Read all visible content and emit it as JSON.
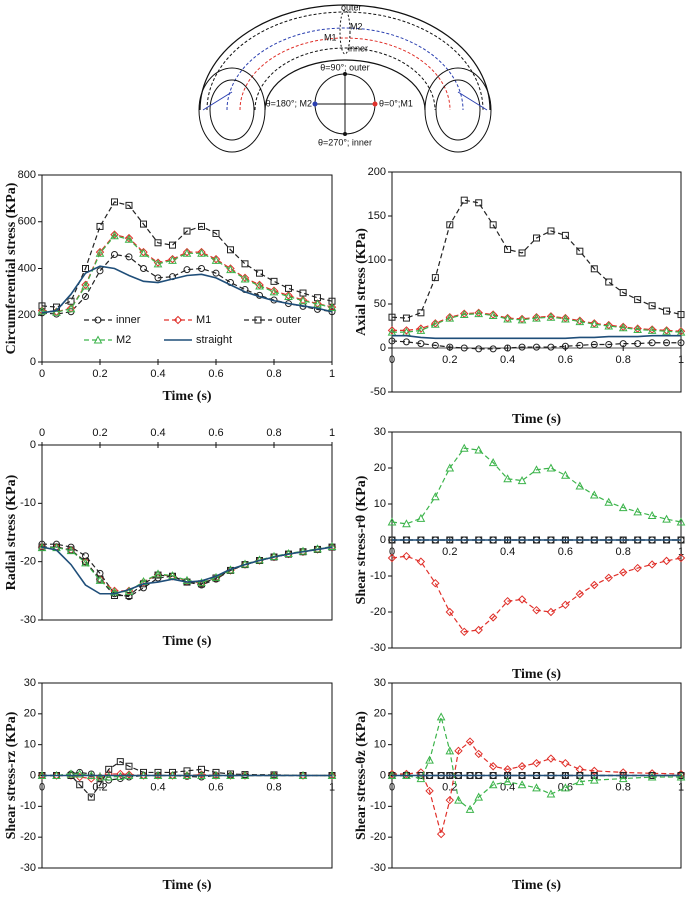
{
  "diagram": {
    "tube_labels": [
      "outer",
      "M2",
      "M1",
      "inner"
    ],
    "section_labels": [
      "θ=90°; outer",
      "θ=180°; M2",
      "θ=0°;M1",
      "θ=270°; inner"
    ]
  },
  "chart_data": [
    {
      "type": "line",
      "y_label": "Circumferential stress (KPa)",
      "x_label": "Time (s)",
      "x": [
        0,
        0.05,
        0.1,
        0.15,
        0.2,
        0.25,
        0.3,
        0.35,
        0.4,
        0.45,
        0.5,
        0.55,
        0.6,
        0.65,
        0.7,
        0.75,
        0.8,
        0.85,
        0.9,
        0.95,
        1
      ],
      "xlim": [
        0,
        1
      ],
      "xticks": [
        0,
        0.2,
        0.4,
        0.6,
        0.8,
        1
      ],
      "ylim": [
        0,
        800
      ],
      "yticks": [
        0,
        200,
        400,
        600,
        800
      ],
      "series": [
        {
          "name": "inner",
          "color": "#222222",
          "marker": "circle",
          "dash": true,
          "values": [
            210,
            205,
            215,
            280,
            390,
            460,
            450,
            400,
            360,
            365,
            395,
            400,
            380,
            340,
            310,
            285,
            265,
            250,
            238,
            225,
            215
          ]
        },
        {
          "name": "M1",
          "color": "#e0302a",
          "marker": "diamond",
          "dash": true,
          "values": [
            220,
            215,
            230,
            330,
            470,
            545,
            530,
            470,
            425,
            440,
            470,
            470,
            440,
            400,
            360,
            330,
            305,
            285,
            265,
            250,
            235
          ]
        },
        {
          "name": "outer",
          "color": "#222222",
          "marker": "square",
          "dash": true,
          "values": [
            240,
            235,
            260,
            400,
            580,
            685,
            670,
            590,
            510,
            500,
            560,
            580,
            550,
            480,
            420,
            380,
            345,
            315,
            295,
            275,
            260
          ]
        },
        {
          "name": "M2",
          "color": "#3cb44b",
          "marker": "triangle",
          "dash": true,
          "values": [
            218,
            213,
            228,
            325,
            465,
            540,
            525,
            465,
            420,
            435,
            465,
            465,
            435,
            395,
            355,
            325,
            300,
            280,
            262,
            248,
            233
          ]
        },
        {
          "name": "straight",
          "color": "#1f4e79",
          "dash": false,
          "values": [
            210,
            220,
            290,
            380,
            410,
            400,
            370,
            345,
            340,
            355,
            370,
            375,
            360,
            330,
            300,
            280,
            262,
            250,
            240,
            230,
            215
          ]
        }
      ]
    },
    {
      "type": "line",
      "y_label": "Axial stress (KPa)",
      "x_label": "Time (s)",
      "x": [
        0,
        0.05,
        0.1,
        0.15,
        0.2,
        0.25,
        0.3,
        0.35,
        0.4,
        0.45,
        0.5,
        0.55,
        0.6,
        0.65,
        0.7,
        0.75,
        0.8,
        0.85,
        0.9,
        0.95,
        1
      ],
      "xlim": [
        0,
        1
      ],
      "xticks": [
        0,
        0.2,
        0.4,
        0.6,
        0.8,
        1
      ],
      "ylim": [
        -50,
        200
      ],
      "yticks": [
        -50,
        0,
        50,
        100,
        150,
        200
      ],
      "series": [
        {
          "color": "#222222",
          "marker": "circle",
          "dash": true,
          "values": [
            8,
            7,
            5,
            3,
            1,
            0,
            -1,
            -1,
            0,
            1,
            1,
            1,
            2,
            3,
            4,
            4,
            5,
            5,
            6,
            6,
            6
          ]
        },
        {
          "color": "#e0302a",
          "marker": "diamond",
          "dash": true,
          "values": [
            20,
            20,
            22,
            28,
            35,
            39,
            40,
            38,
            34,
            33,
            35,
            36,
            34,
            31,
            28,
            26,
            24,
            22,
            21,
            20,
            19
          ]
        },
        {
          "color": "#222222",
          "marker": "square",
          "dash": true,
          "values": [
            35,
            34,
            40,
            80,
            140,
            168,
            165,
            140,
            112,
            108,
            125,
            133,
            128,
            110,
            90,
            75,
            63,
            55,
            48,
            42,
            38
          ]
        },
        {
          "color": "#3cb44b",
          "marker": "triangle",
          "dash": true,
          "values": [
            18,
            18,
            20,
            27,
            34,
            38,
            39,
            37,
            33,
            32,
            34,
            35,
            33,
            30,
            27,
            25,
            23,
            21,
            20,
            19,
            18
          ]
        },
        {
          "color": "#1f4e79",
          "dash": false,
          "values": [
            14,
            14,
            12,
            11,
            11,
            11,
            11,
            11,
            11,
            11,
            11,
            11,
            11,
            12,
            12,
            13,
            13,
            13,
            14,
            14,
            14
          ]
        }
      ]
    },
    {
      "type": "line",
      "y_label": "Radial stress (KPa)",
      "x_label": "Time (s)",
      "x": [
        0,
        0.05,
        0.1,
        0.15,
        0.2,
        0.25,
        0.3,
        0.35,
        0.4,
        0.45,
        0.5,
        0.55,
        0.6,
        0.65,
        0.7,
        0.75,
        0.8,
        0.85,
        0.9,
        0.95,
        1
      ],
      "xlim": [
        0,
        1
      ],
      "xticks": [
        0,
        0.2,
        0.4,
        0.6,
        0.8,
        1
      ],
      "ylim": [
        -30,
        0
      ],
      "yticks": [
        -30,
        -20,
        -10,
        0
      ],
      "series": [
        {
          "color": "#222222",
          "marker": "circle",
          "dash": true,
          "values": [
            -17,
            -17,
            -17.5,
            -19,
            -22,
            -25.5,
            -26,
            -24.5,
            -22.8,
            -22.5,
            -23.5,
            -24,
            -23,
            -21.5,
            -20.5,
            -19.8,
            -19.2,
            -18.7,
            -18.3,
            -17.9,
            -17.5
          ]
        },
        {
          "color": "#e0302a",
          "marker": "diamond",
          "dash": true,
          "values": [
            -17.5,
            -17.5,
            -18,
            -20,
            -23,
            -25,
            -25,
            -23.5,
            -22.2,
            -22.5,
            -23.3,
            -23.7,
            -22.8,
            -21.5,
            -20.5,
            -19.8,
            -19.2,
            -18.7,
            -18.3,
            -17.9,
            -17.5
          ]
        },
        {
          "color": "#222222",
          "marker": "square",
          "dash": true,
          "values": [
            -17.5,
            -17.5,
            -18,
            -20,
            -23,
            -25.8,
            -25.8,
            -23.8,
            -22.3,
            -22.5,
            -23.5,
            -23.8,
            -22.8,
            -21.5,
            -20.5,
            -19.8,
            -19.2,
            -18.7,
            -18.3,
            -17.9,
            -17.5
          ]
        },
        {
          "color": "#3cb44b",
          "marker": "triangle",
          "dash": true,
          "values": [
            -17.6,
            -17.6,
            -18.1,
            -20.2,
            -23.2,
            -25.2,
            -25.1,
            -23.4,
            -22.1,
            -22.4,
            -23.2,
            -23.6,
            -22.7,
            -21.4,
            -20.4,
            -19.7,
            -19.1,
            -18.6,
            -18.2,
            -17.8,
            -17.4
          ]
        },
        {
          "color": "#1f4e79",
          "dash": false,
          "values": [
            -17.5,
            -18,
            -20.5,
            -24,
            -25.5,
            -25.5,
            -24.8,
            -23.8,
            -23.5,
            -23,
            -23.5,
            -23.3,
            -22.5,
            -21.3,
            -20.5,
            -19.8,
            -19.2,
            -18.7,
            -18.3,
            -17.9,
            -17.5
          ]
        }
      ]
    },
    {
      "type": "line",
      "y_label": "Shear stress-rθ (KPa)",
      "x_label": "Time (s)",
      "x": [
        0,
        0.05,
        0.1,
        0.15,
        0.2,
        0.25,
        0.3,
        0.35,
        0.4,
        0.45,
        0.5,
        0.55,
        0.6,
        0.65,
        0.7,
        0.75,
        0.8,
        0.85,
        0.9,
        0.95,
        1
      ],
      "xlim": [
        0,
        1
      ],
      "xticks": [
        0,
        0.2,
        0.4,
        0.6,
        0.8,
        1
      ],
      "ylim": [
        -30,
        30
      ],
      "yticks": [
        -30,
        -20,
        -10,
        0,
        10,
        20,
        30
      ],
      "series": [
        {
          "color": "#222222",
          "marker": "circle",
          "dash": true,
          "values": [
            0,
            0,
            0,
            0,
            0,
            0,
            0,
            0,
            0,
            0,
            0,
            0,
            0,
            0,
            0,
            0,
            0,
            0,
            0,
            0,
            0
          ]
        },
        {
          "color": "#e0302a",
          "marker": "diamond",
          "dash": true,
          "values": [
            -5,
            -4.5,
            -6,
            -12,
            -20,
            -25.5,
            -25,
            -21.5,
            -17,
            -16.5,
            -19.5,
            -20,
            -18,
            -15,
            -12.5,
            -10.5,
            -9,
            -7.8,
            -6.8,
            -5.8,
            -5
          ]
        },
        {
          "color": "#222222",
          "marker": "square",
          "dash": true,
          "values": [
            0,
            0,
            0,
            0,
            0,
            0,
            0,
            0,
            0,
            0,
            0,
            0,
            0,
            0,
            0,
            0,
            0,
            0,
            0,
            0,
            0
          ]
        },
        {
          "color": "#3cb44b",
          "marker": "triangle",
          "dash": true,
          "values": [
            5,
            4.5,
            6,
            12,
            20,
            25.5,
            25,
            21.5,
            17,
            16.5,
            19.5,
            20,
            18,
            15,
            12.5,
            10.5,
            9,
            7.8,
            6.8,
            5.8,
            5
          ]
        },
        {
          "color": "#1f4e79",
          "dash": false,
          "values": [
            0,
            0,
            0,
            0,
            0,
            0,
            0,
            0,
            0,
            0,
            0,
            0,
            0,
            0,
            0,
            0,
            0,
            0,
            0,
            0,
            0
          ]
        }
      ]
    },
    {
      "type": "line",
      "y_label": "Shear stress-rz (KPa)",
      "x_label": "Time (s)",
      "x": [
        0,
        0.05,
        0.1,
        0.13,
        0.17,
        0.2,
        0.23,
        0.27,
        0.3,
        0.35,
        0.4,
        0.45,
        0.5,
        0.55,
        0.6,
        0.65,
        0.7,
        0.8,
        0.9,
        1
      ],
      "xlim": [
        0,
        1
      ],
      "xticks": [
        0,
        0.2,
        0.4,
        0.6,
        0.8,
        1
      ],
      "ylim": [
        -30,
        30
      ],
      "yticks": [
        -30,
        -20,
        -10,
        0,
        10,
        20,
        30
      ],
      "series": [
        {
          "color": "#222222",
          "marker": "circle",
          "dash": true,
          "values": [
            0,
            0,
            0.5,
            1,
            0.5,
            -1,
            -1.5,
            -1,
            -0.5,
            0,
            0,
            0,
            -0.3,
            -0.5,
            0,
            0,
            0,
            0,
            0,
            0
          ]
        },
        {
          "color": "#e0302a",
          "marker": "diamond",
          "dash": true,
          "values": [
            0,
            0,
            0,
            -0.5,
            -1,
            -0.5,
            0.5,
            0.5,
            0.3,
            0,
            0,
            0,
            0,
            0.3,
            0,
            0,
            0,
            0,
            0,
            0
          ]
        },
        {
          "color": "#222222",
          "marker": "square",
          "dash": true,
          "values": [
            0,
            0,
            0,
            -3,
            -7,
            -3,
            2,
            4.5,
            3,
            1,
            1,
            1,
            1.5,
            2,
            1,
            0.5,
            0.3,
            0.2,
            0,
            0
          ]
        },
        {
          "color": "#3cb44b",
          "marker": "triangle",
          "dash": true,
          "values": [
            0,
            0,
            0.5,
            0.5,
            0,
            -0.5,
            -0.5,
            -0.3,
            0,
            0,
            0,
            0,
            0,
            0,
            0,
            0,
            0,
            0,
            0,
            0
          ]
        },
        {
          "color": "#1f4e79",
          "dash": false,
          "values": [
            0,
            0,
            0,
            0,
            0,
            0,
            0,
            0,
            0,
            0,
            0,
            0,
            0,
            0,
            0,
            0,
            0,
            0,
            0,
            0
          ]
        }
      ]
    },
    {
      "type": "line",
      "y_label": "Shear stress-θz (KPa)",
      "x_label": "Time (s)",
      "x": [
        0,
        0.05,
        0.1,
        0.13,
        0.17,
        0.2,
        0.23,
        0.27,
        0.3,
        0.35,
        0.4,
        0.45,
        0.5,
        0.55,
        0.6,
        0.65,
        0.7,
        0.8,
        0.9,
        1
      ],
      "xlim": [
        0,
        1
      ],
      "xticks": [
        0,
        0.2,
        0.4,
        0.6,
        0.8,
        1
      ],
      "ylim": [
        -30,
        30
      ],
      "yticks": [
        -30,
        -20,
        -10,
        0,
        10,
        20,
        30
      ],
      "series": [
        {
          "color": "#222222",
          "marker": "circle",
          "dash": true,
          "values": [
            0,
            0,
            0,
            0,
            0,
            0,
            0,
            0,
            0,
            0,
            0,
            0,
            0,
            0,
            0,
            0,
            0,
            0,
            0,
            0
          ]
        },
        {
          "color": "#e0302a",
          "marker": "diamond",
          "dash": true,
          "values": [
            0.5,
            0.5,
            1,
            -5,
            -19,
            -8,
            8,
            11,
            7,
            3,
            2,
            3,
            4,
            5.5,
            4,
            2,
            1.5,
            1,
            0.7,
            0.5
          ]
        },
        {
          "color": "#222222",
          "marker": "square",
          "dash": true,
          "values": [
            0,
            0,
            0,
            0,
            0,
            0,
            0,
            0,
            0,
            0,
            0,
            0,
            0,
            0,
            0,
            0,
            0,
            0,
            0,
            0
          ]
        },
        {
          "color": "#3cb44b",
          "marker": "triangle",
          "dash": true,
          "values": [
            0,
            0,
            -1,
            5,
            19,
            8,
            -8,
            -11,
            -7,
            -3,
            -2,
            -3,
            -4,
            -6,
            -4,
            -2,
            -1.5,
            -1,
            -0.5,
            -0.5
          ]
        },
        {
          "color": "#1f4e79",
          "dash": false,
          "values": [
            0,
            0,
            0,
            0,
            0,
            0,
            0,
            0,
            0,
            0,
            0,
            0,
            0,
            0,
            0,
            0,
            0,
            0,
            0,
            0
          ]
        }
      ]
    }
  ]
}
